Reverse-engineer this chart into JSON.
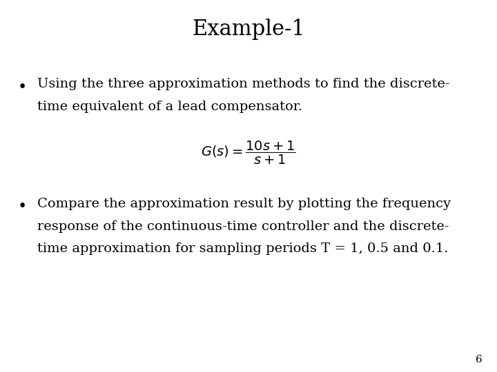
{
  "title": "Example-1",
  "title_fontsize": 22,
  "title_font": "DejaVu Serif",
  "background_color": "#ffffff",
  "text_color": "#000000",
  "bullet1_line1": "Using the three approximation methods to find the discrete-",
  "bullet1_line2": "time equivalent of a lead compensator.",
  "formula": "$G(s) = \\dfrac{10s + 1}{s + 1}$",
  "bullet2_line1": "Compare the approximation result by plotting the frequency",
  "bullet2_line2": "response of the continuous-time controller and the discrete-",
  "bullet2_line3": "time approximation for sampling periods T = 1, 0.5 and 0.1.",
  "page_number": "6",
  "body_fontsize": 14,
  "body_font": "DejaVu Serif",
  "formula_fontsize": 14
}
